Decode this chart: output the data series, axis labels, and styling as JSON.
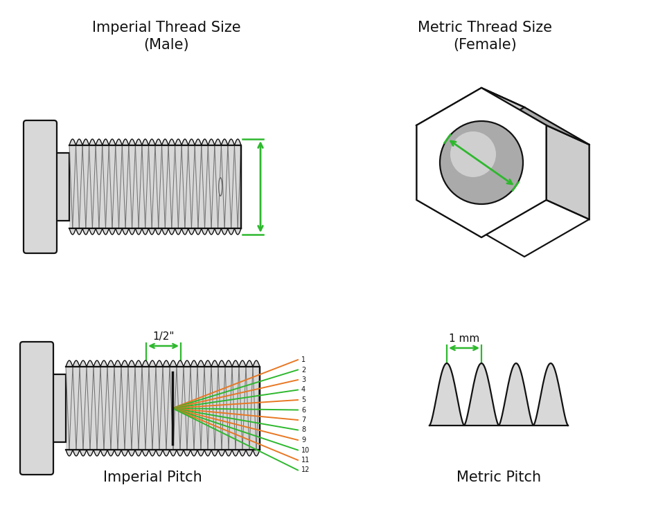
{
  "bg_color": "#ffffff",
  "text_color": "#111111",
  "green_color": "#2db82d",
  "orange_color": "#e87722",
  "gray_light": "#cccccc",
  "gray_medium": "#aaaaaa",
  "gray_dark": "#666666",
  "gray_body": "#d8d8d8",
  "top_left_title": "Imperial Thread Size\n(Male)",
  "top_right_title": "Metric Thread Size\n(Female)",
  "bottom_left_title": "Imperial Pitch",
  "bottom_right_title": "Metric Pitch",
  "half_inch_label": "1/2\"",
  "mm_label": "1 mm"
}
